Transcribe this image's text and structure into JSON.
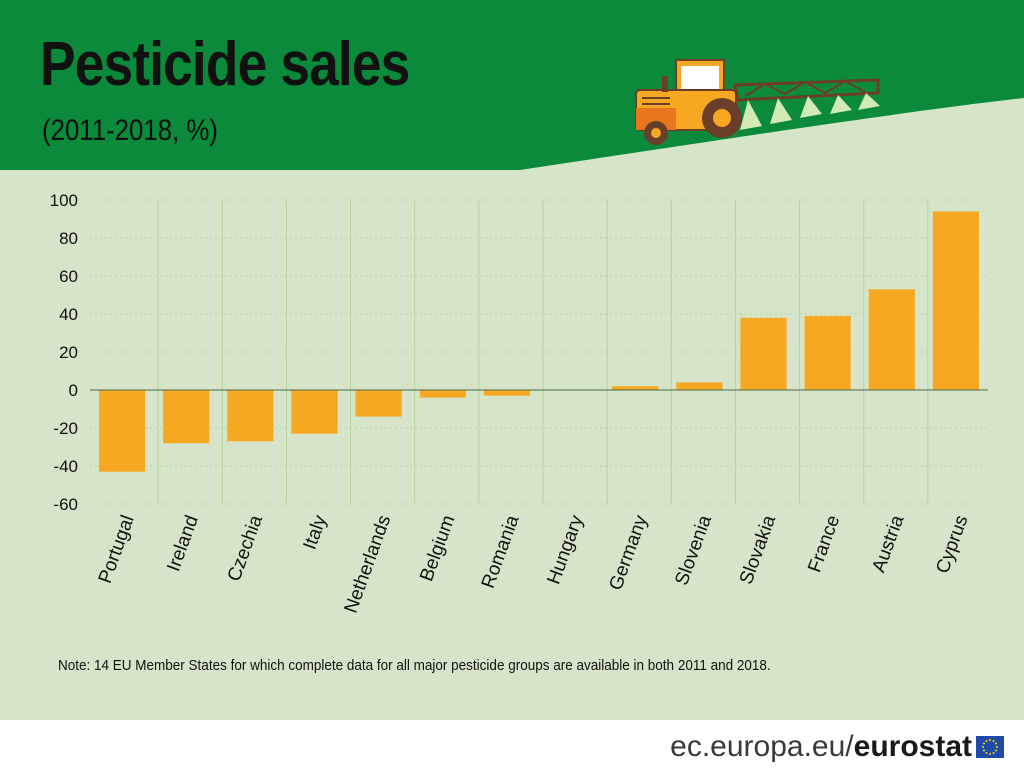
{
  "header": {
    "title": "Pesticide sales",
    "subtitle": "(2011-2018, %)"
  },
  "colors": {
    "header_green": "#0a8a3a",
    "background": "#d6e5c9",
    "bar": "#f7a823",
    "gridline": "#b7d39f",
    "tractor": "#f7a823"
  },
  "illustration": {
    "icon": "tractor-sprayer-icon"
  },
  "chart_data": {
    "type": "bar",
    "categories": [
      "Portugal",
      "Ireland",
      "Czechia",
      "Italy",
      "Netherlands",
      "Belgium",
      "Romania",
      "Hungary",
      "Germany",
      "Slovenia",
      "Slovakia",
      "France",
      "Austria",
      "Cyprus"
    ],
    "values": [
      -43,
      -28,
      -27,
      -23,
      -14,
      -4,
      -3,
      0,
      2,
      4,
      38,
      39,
      53,
      94
    ],
    "title": "Pesticide sales",
    "subtitle": "(2011-2018, %)",
    "xlabel": "",
    "ylabel": "",
    "ylim": [
      -60,
      100
    ],
    "yticks": [
      100,
      80,
      60,
      40,
      20,
      0,
      -20,
      -40,
      -60
    ],
    "grid": true,
    "legend": "none"
  },
  "note": "Note: 14 EU Member States for which complete data for all major pesticide groups are available in both 2011 and 2018.",
  "footer": {
    "url_prefix": "ec.europa.eu/",
    "brand": "eurostat",
    "flag_icon": "eu-flag-icon"
  }
}
